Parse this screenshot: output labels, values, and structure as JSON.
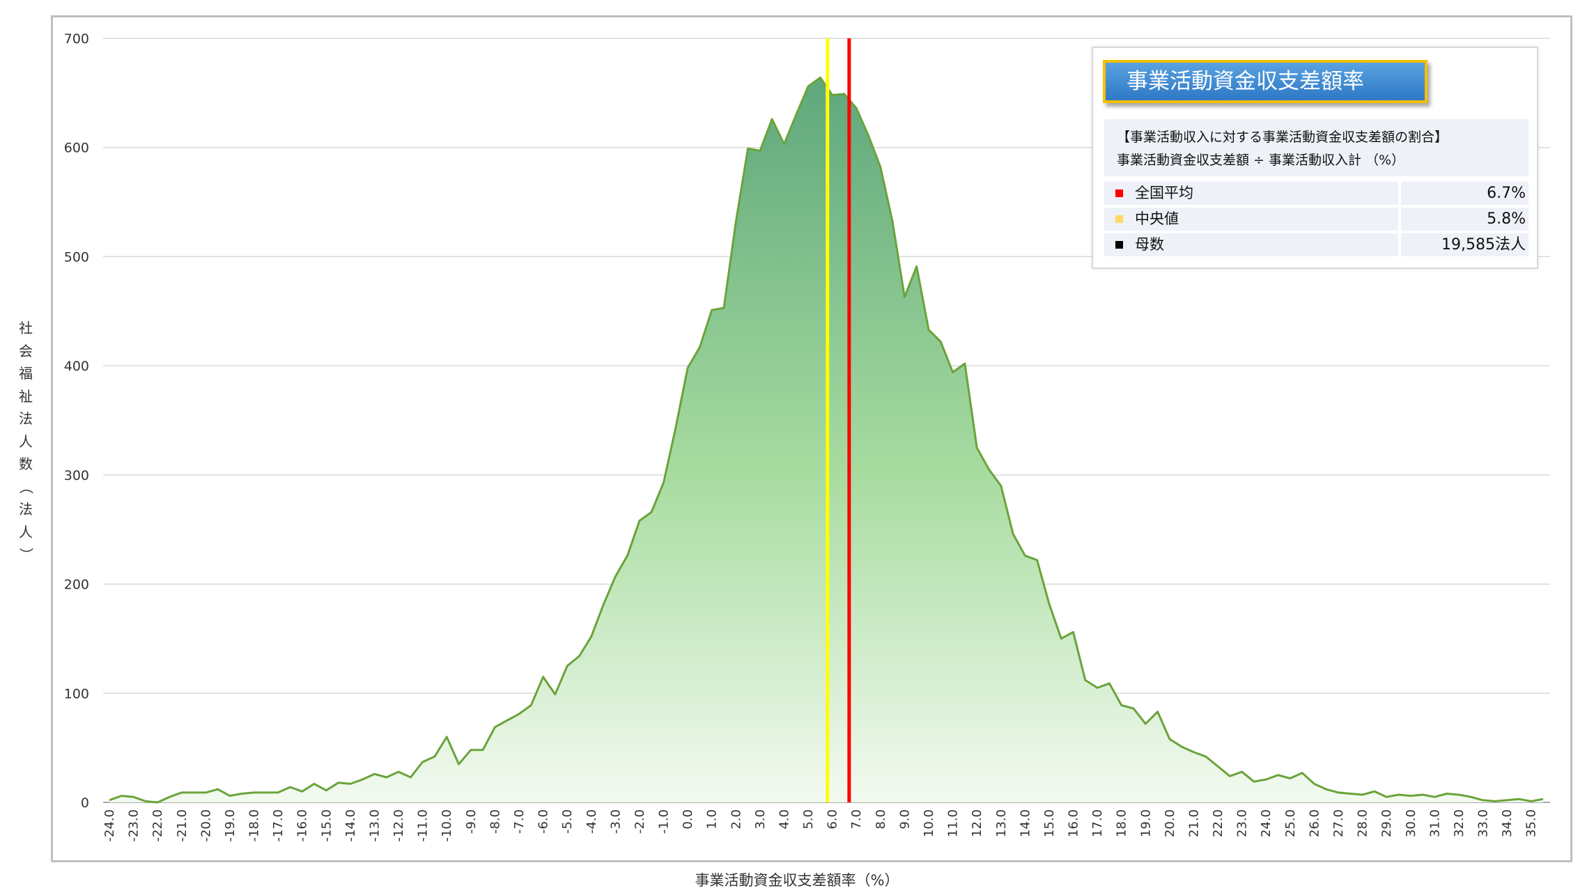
{
  "chart_data": {
    "type": "area",
    "xlabel": "事業活動資金収支差額率（%）",
    "ylabel": "社会福祉法人数（法人）",
    "ylim": [
      0,
      700
    ],
    "yticks": [
      0,
      100,
      200,
      300,
      400,
      500,
      600,
      700
    ],
    "grid": true,
    "x_start": -24.0,
    "x_step": 0.5,
    "xtick_labels": [
      "-24.0",
      "-23.0",
      "-22.0",
      "-21.0",
      "-20.0",
      "-19.0",
      "-18.0",
      "-17.0",
      "-16.0",
      "-15.0",
      "-14.0",
      "-13.0",
      "-12.0",
      "-11.0",
      "-10.0",
      "-9.0",
      "-8.0",
      "-7.0",
      "-6.0",
      "-5.0",
      "-4.0",
      "-3.0",
      "-2.0",
      "-1.0",
      "0.0",
      "1.0",
      "2.0",
      "3.0",
      "4.0",
      "5.0",
      "6.0",
      "7.0",
      "8.0",
      "9.0",
      "10.0",
      "11.0",
      "12.0",
      "13.0",
      "14.0",
      "15.0",
      "16.0",
      "17.0",
      "18.0",
      "19.0",
      "20.0",
      "21.0",
      "22.0",
      "23.0",
      "24.0",
      "25.0",
      "26.0",
      "27.0",
      "28.0",
      "29.0",
      "30.0",
      "31.0",
      "32.0",
      "33.0",
      "34.0",
      "35.0"
    ],
    "values": [
      2,
      6,
      5,
      1,
      0,
      5,
      9,
      9,
      9,
      12,
      6,
      8,
      9,
      9,
      9,
      14,
      10,
      17,
      11,
      18,
      17,
      21,
      26,
      23,
      28,
      23,
      37,
      42,
      60,
      35,
      48,
      48,
      69,
      75,
      81,
      89,
      115,
      99,
      125,
      134,
      152,
      181,
      207,
      226,
      258,
      266,
      293,
      343,
      398,
      417,
      451,
      453,
      532,
      599,
      597,
      626,
      603,
      630,
      656,
      664,
      648,
      649,
      636,
      611,
      582,
      532,
      463,
      491,
      433,
      422,
      394,
      402,
      325,
      305,
      290,
      246,
      226,
      222,
      182,
      150,
      156,
      112,
      105,
      109,
      89,
      86,
      72,
      83,
      58,
      51,
      46,
      42,
      33,
      24,
      28,
      19,
      21,
      25,
      22,
      27,
      17,
      12,
      9,
      8,
      7,
      10,
      5,
      7,
      6,
      7,
      5,
      8,
      7,
      5,
      2,
      1,
      2,
      3,
      1,
      3
    ],
    "series": [
      {
        "name": "",
        "color": "#6aa33a"
      }
    ],
    "reference_lines": [
      {
        "label": "中央値",
        "x": 5.8,
        "color": "#ffff00"
      },
      {
        "label": "全国平均",
        "x": 6.7,
        "color": "#ff0000"
      }
    ]
  },
  "panel": {
    "title": "事業活動資金収支差額率",
    "desc_line1": "【事業活動収入に対する事業活動資金収支差額の割合】",
    "desc_line2": "事業活動資金収支差額 ÷ 事業活動収入計 （%）",
    "stats": [
      {
        "label": "全国平均",
        "value": "6.7%",
        "color": "#ff0000"
      },
      {
        "label": "中央値",
        "value": "5.8%",
        "color": "#ffd966"
      },
      {
        "label": "母数",
        "value": "19,585法人",
        "color": "#000000"
      }
    ]
  }
}
